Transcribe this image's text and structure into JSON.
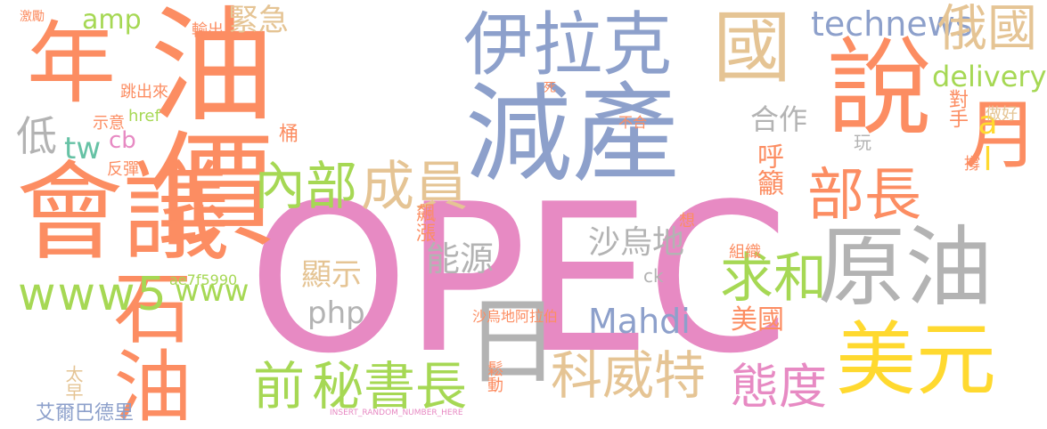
{
  "palette": {
    "orange": "#fc8d62",
    "blue": "#8da0cb",
    "pink": "#e78ac3",
    "green": "#a6d854",
    "yellow": "#ffd92f",
    "tan": "#e5c494",
    "gray": "#b3b3b3",
    "teal": "#66c2a5"
  },
  "words": [
    {
      "text": "OPEC",
      "color": "pink"
    },
    {
      "text": "油價",
      "color": "orange"
    },
    {
      "text": "減產",
      "color": "blue"
    },
    {
      "text": "會議",
      "color": "orange"
    },
    {
      "text": "說",
      "color": "orange"
    },
    {
      "text": "伊拉克",
      "color": "blue"
    },
    {
      "text": "原油",
      "color": "gray"
    },
    {
      "text": "年",
      "color": "orange"
    },
    {
      "text": "石油",
      "color": "orange"
    },
    {
      "text": "日",
      "color": "gray"
    },
    {
      "text": "美元",
      "color": "yellow"
    },
    {
      "text": "國",
      "color": "tan"
    },
    {
      "text": "月",
      "color": "orange"
    },
    {
      "text": "科威特",
      "color": "tan"
    },
    {
      "text": "部長",
      "color": "orange"
    },
    {
      "text": "秘書長",
      "color": "green"
    },
    {
      "text": "態度",
      "color": "pink"
    },
    {
      "text": "成員",
      "color": "tan"
    },
    {
      "text": "內部",
      "color": "green"
    },
    {
      "text": "求和",
      "color": "green"
    },
    {
      "text": "www5",
      "color": "green"
    },
    {
      "text": "technews",
      "color": "blue"
    },
    {
      "text": "俄國",
      "color": "tan"
    },
    {
      "text": "al",
      "color": "yellow"
    },
    {
      "text": "前",
      "color": "green"
    },
    {
      "text": "低",
      "color": "gray"
    },
    {
      "text": "delivery",
      "color": "green"
    },
    {
      "text": "Mahdi",
      "color": "blue"
    },
    {
      "text": "www",
      "color": "green"
    },
    {
      "text": "沙烏地",
      "color": "gray"
    },
    {
      "text": "能源",
      "color": "gray"
    },
    {
      "text": "顯示",
      "color": "tan"
    },
    {
      "text": "php",
      "color": "gray"
    },
    {
      "text": "amp",
      "color": "green"
    },
    {
      "text": "緊急",
      "color": "tan"
    },
    {
      "text": "tw",
      "color": "teal"
    },
    {
      "text": "cb",
      "color": "pink"
    },
    {
      "text": "合作",
      "color": "gray"
    },
    {
      "text": "呼籲",
      "color": "orange"
    },
    {
      "text": "美國",
      "color": "orange"
    },
    {
      "text": "艾爾巴德里",
      "color": "blue"
    },
    {
      "text": "沙烏地阿拉伯",
      "color": "orange"
    },
    {
      "text": "ae7f5990",
      "color": "green"
    },
    {
      "text": "對手",
      "color": "orange"
    },
    {
      "text": "做好",
      "color": "tan"
    },
    {
      "text": "桶",
      "color": "orange"
    },
    {
      "text": "飆漲",
      "color": "orange"
    },
    {
      "text": "組織",
      "color": "orange"
    },
    {
      "text": "玩",
      "color": "gray"
    },
    {
      "text": "撐",
      "color": "orange"
    },
    {
      "text": "太早",
      "color": "tan"
    },
    {
      "text": "反彈",
      "color": "orange"
    },
    {
      "text": "示意",
      "color": "orange"
    },
    {
      "text": "跳出來",
      "color": "orange"
    },
    {
      "text": "輸出",
      "color": "orange"
    },
    {
      "text": "href",
      "color": "green"
    },
    {
      "text": "不合",
      "color": "orange"
    },
    {
      "text": "鬆動",
      "color": "orange"
    },
    {
      "text": "想",
      "color": "orange"
    },
    {
      "text": "ck",
      "color": "gray"
    },
    {
      "text": "激勵",
      "color": "orange"
    },
    {
      "text": "死",
      "color": "orange"
    },
    {
      "text": "INSERT_RANDOM_NUMBER_HERE",
      "color": "pink"
    }
  ]
}
